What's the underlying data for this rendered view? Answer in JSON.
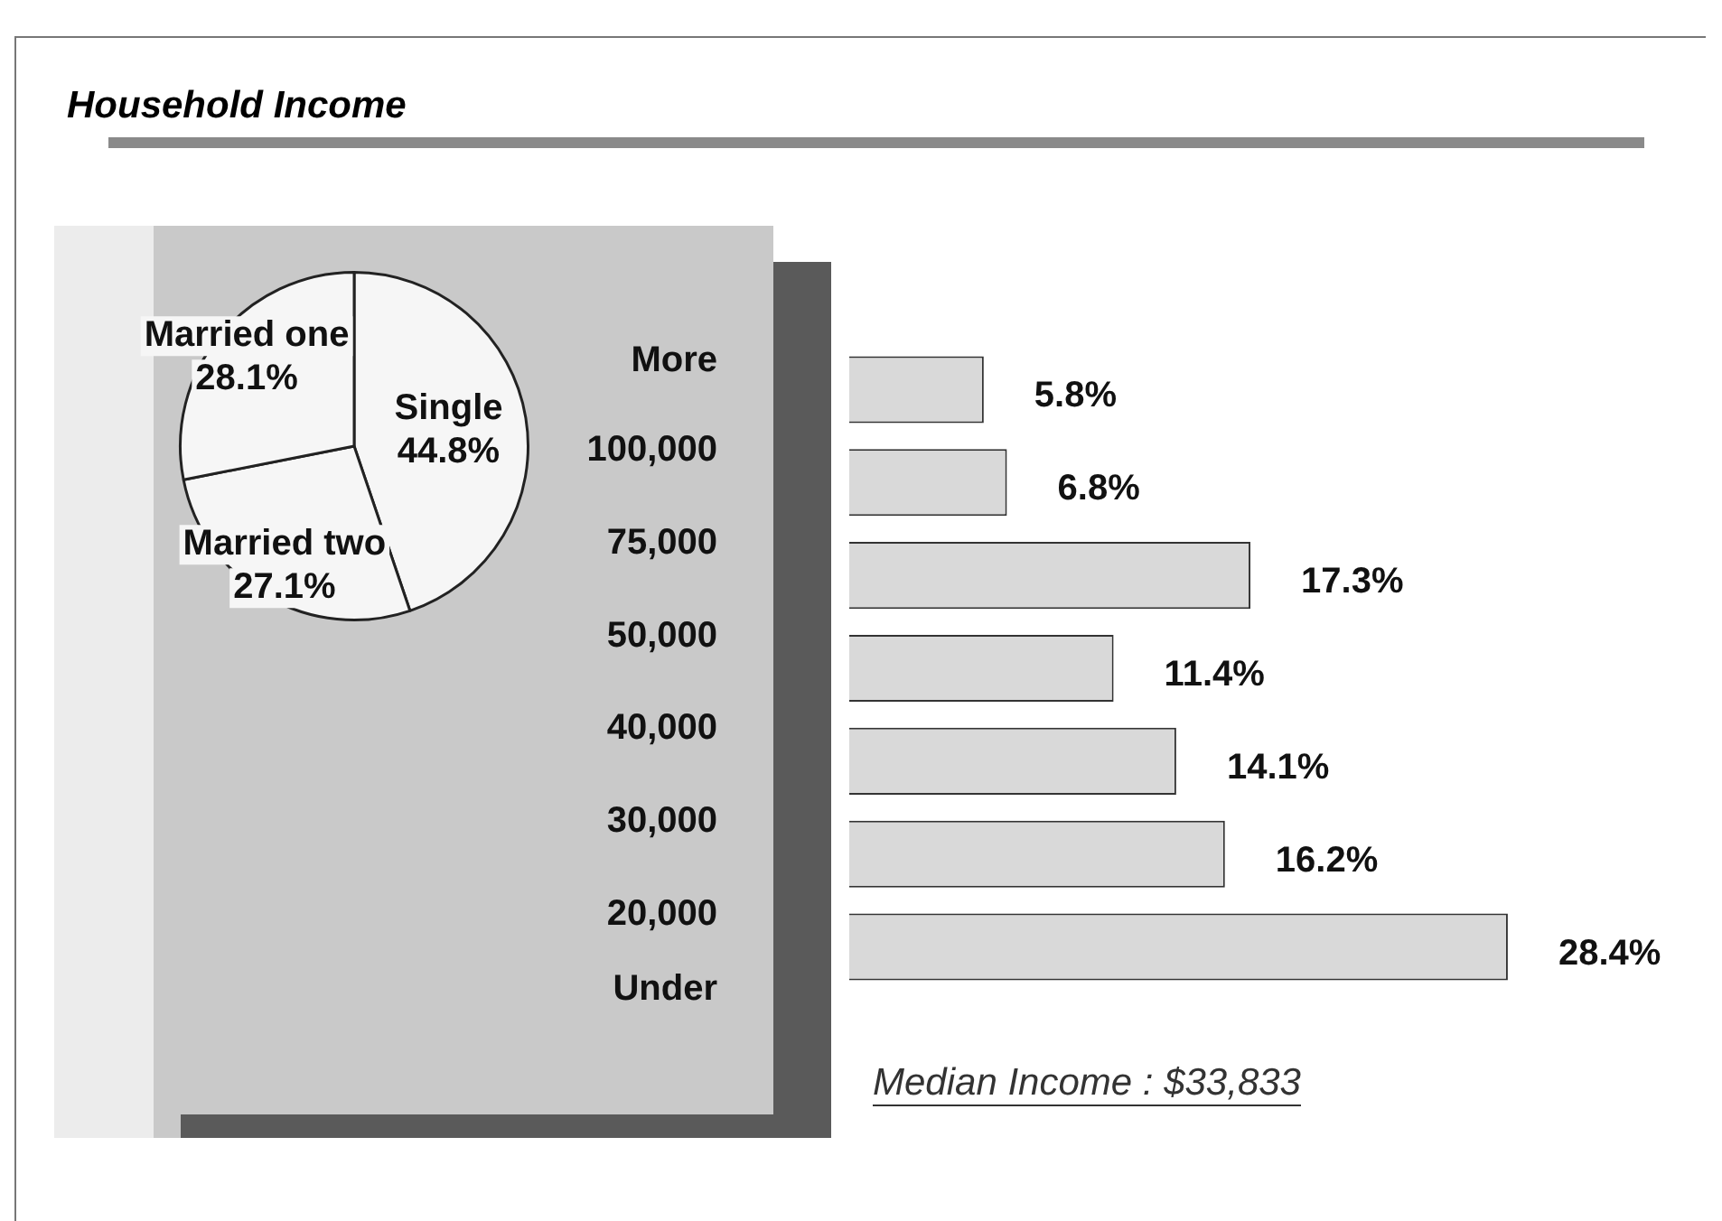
{
  "chart_data": [
    {
      "type": "pie",
      "title": "Household Income",
      "categories": [
        "Single",
        "Married two",
        "Married one"
      ],
      "values": [
        44.8,
        27.1,
        28.1
      ],
      "value_labels": [
        "44.8%",
        "27.1%",
        "28.1%"
      ],
      "colors": [
        "#f6f6f6",
        "#f6f6f6",
        "#f6f6f6"
      ],
      "legend": false
    },
    {
      "type": "bar",
      "orientation": "horizontal",
      "categories": [
        null,
        null,
        null,
        null,
        null,
        null,
        null
      ],
      "values": [
        5.8,
        6.8,
        17.3,
        11.4,
        14.1,
        16.2,
        28.4
      ],
      "value_labels": [
        "5.8%",
        "6.8%",
        "17.3%",
        "11.4%",
        "14.1%",
        "16.2%",
        "28.4%"
      ],
      "color": "#d9d9d9",
      "annotations": [
        "More",
        "100,000",
        "75,000",
        "50,000",
        "40,000",
        "30,000",
        "20,000",
        "Under",
        "Median Income : $33,833"
      ],
      "legend": false
    }
  ]
}
